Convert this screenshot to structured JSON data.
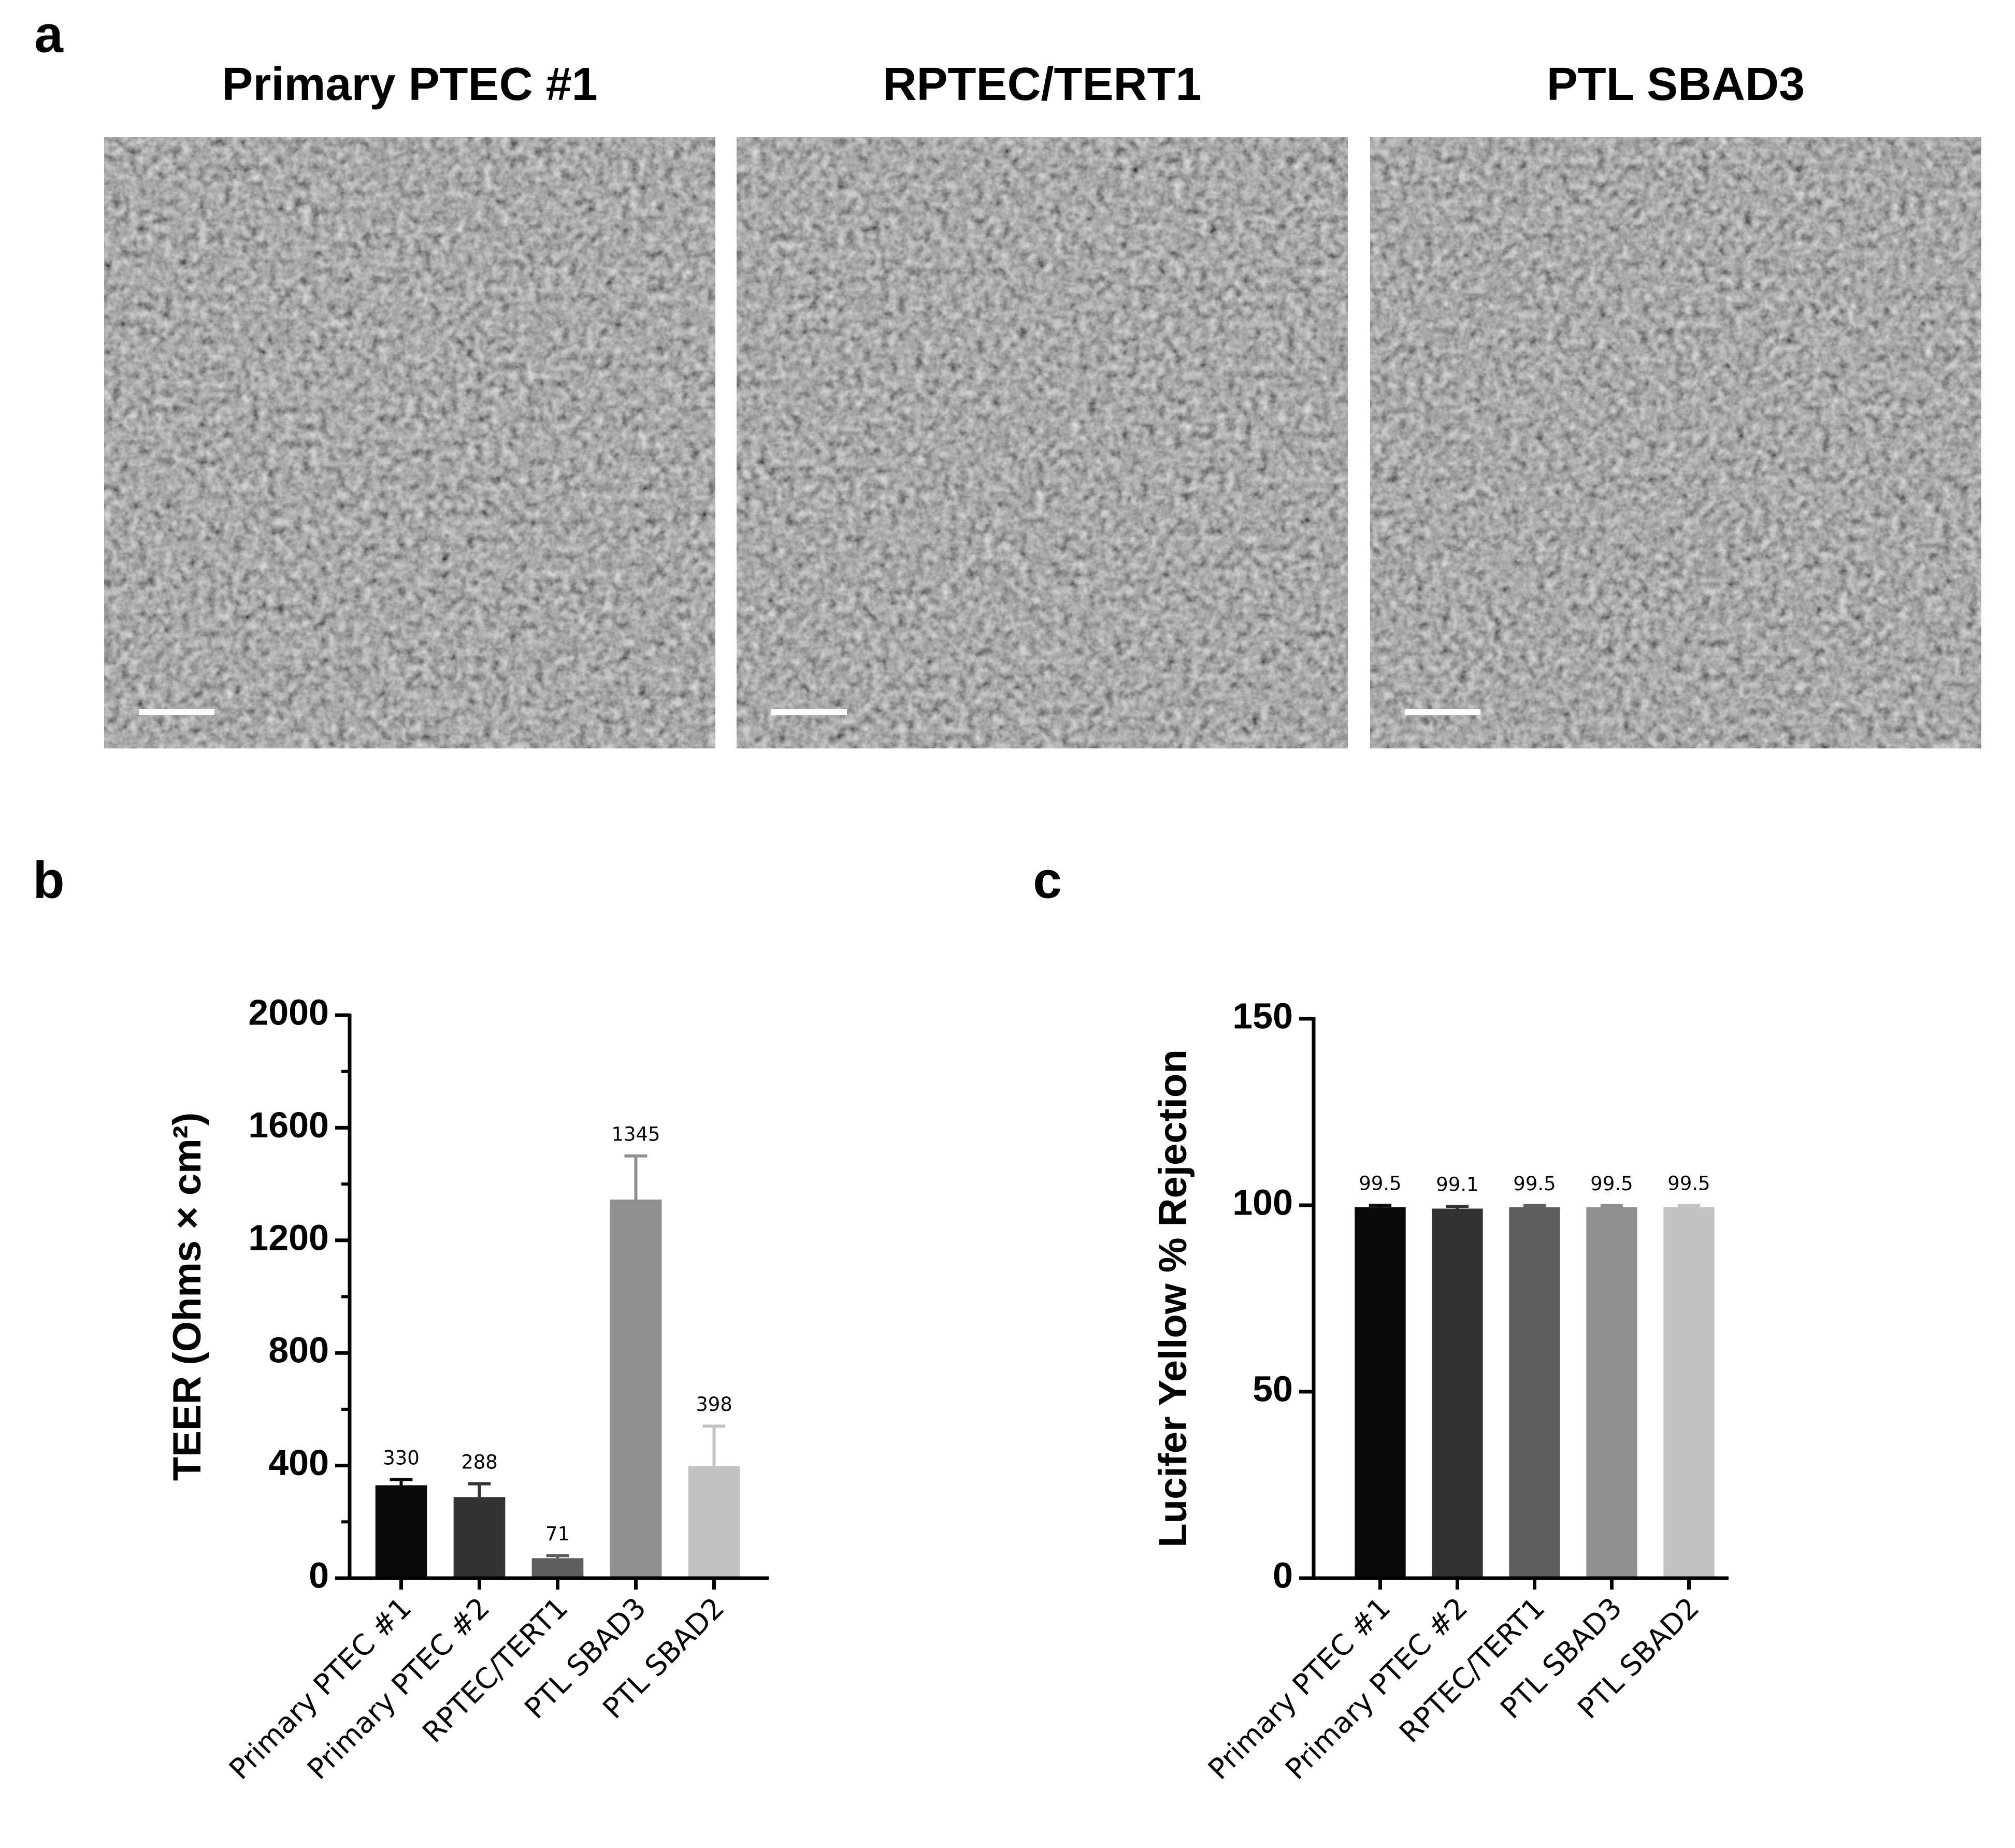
{
  "panel_labels": [
    "a",
    "b",
    "c"
  ],
  "micrographs": [
    {
      "title": "Primary PTEC #1"
    },
    {
      "title": "RPTEC/TERT1"
    },
    {
      "title": "PTL SBAD3"
    }
  ],
  "chart_data": [
    {
      "type": "bar",
      "y_label": "TEER (Ohms × cm²)",
      "categories": [
        "Primary PTEC #1",
        "Primary PTEC #2",
        "RPTEC/TERT1",
        "PTL SBAD3",
        "PTL SBAD2"
      ],
      "values": [
        330,
        288,
        71,
        1345,
        398
      ],
      "errors": [
        20,
        47,
        9,
        155,
        142
      ],
      "colors": [
        "#0a0a0a",
        "#333333",
        "#5e5e5e",
        "#8f8f8f",
        "#c2c2c2"
      ],
      "ylim": [
        0,
        2000
      ],
      "yticks": [
        0,
        400,
        800,
        1200,
        1600,
        2000
      ],
      "minor_yticks": [
        200,
        600,
        1000,
        1400,
        1800
      ]
    },
    {
      "type": "bar",
      "y_label": "Lucifer Yellow % Rejection",
      "categories": [
        "Primary PTEC #1",
        "Primary PTEC #2",
        "RPTEC/TERT1",
        "PTL SBAD3",
        "PTL SBAD2"
      ],
      "values": [
        99.5,
        99.1,
        99.5,
        99.5,
        99.5
      ],
      "errors": [
        0.5,
        0.6,
        0.4,
        0.4,
        0.5
      ],
      "colors": [
        "#0a0a0a",
        "#333333",
        "#5e5e5e",
        "#8f8f8f",
        "#c2c2c2"
      ],
      "ylim": [
        0,
        150
      ],
      "yticks": [
        0,
        50,
        100,
        150
      ]
    }
  ]
}
